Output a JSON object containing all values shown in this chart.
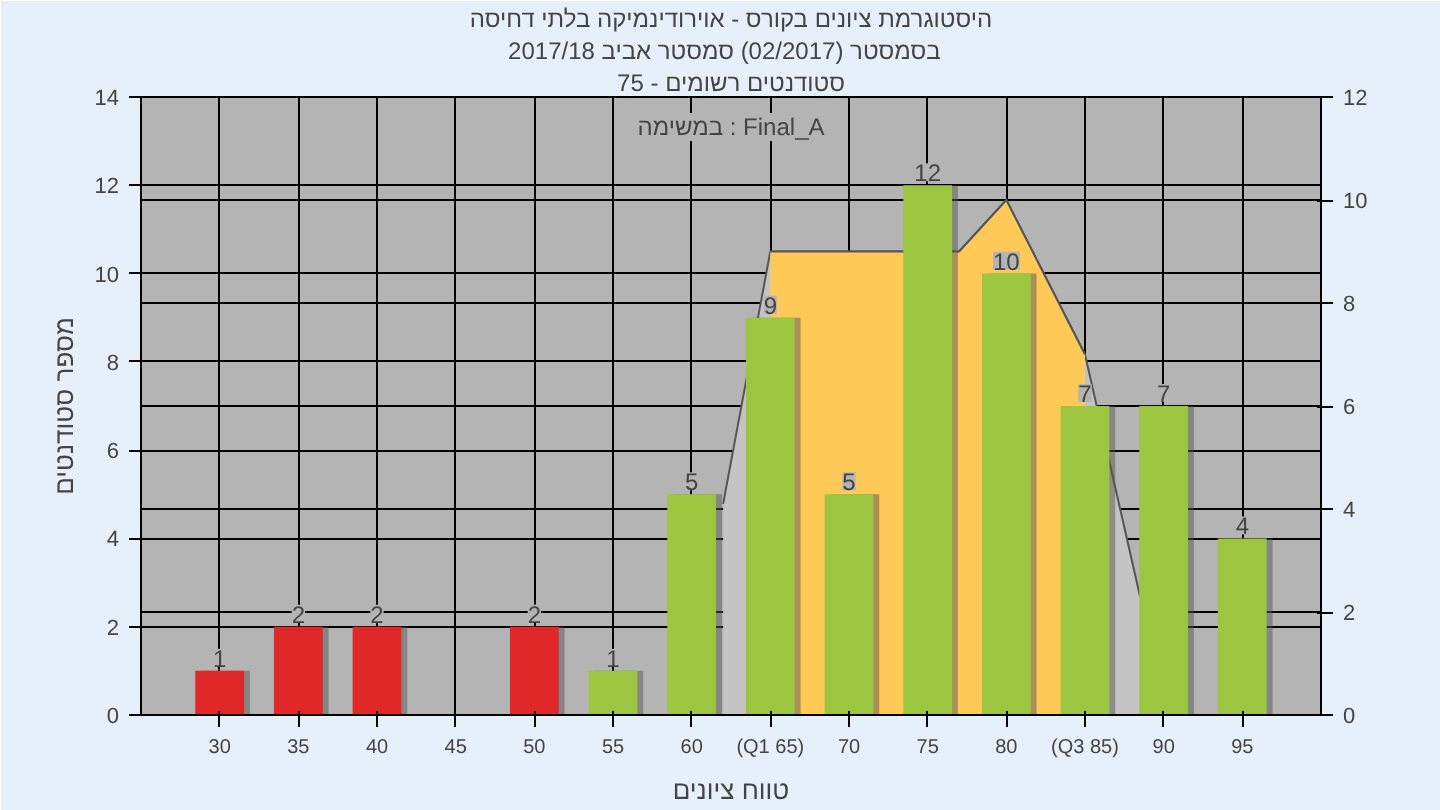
{
  "chart_data": {
    "type": "bar",
    "title": "היסטוגרמת ציונים בקורס - אוירודינמיקה בלתי דחיסה",
    "subtitle": "בסמסטר  (02/2017)  סמסטר אביב 2017/18",
    "xlabel": "טווח ציונים",
    "ylabel": "מספר סטודנטים",
    "annotations": [
      "סטודנטים רשומים - 75",
      "במשימה : Final_A"
    ],
    "x": [
      30,
      35,
      40,
      45,
      50,
      55,
      60,
      65,
      70,
      75,
      80,
      85,
      90,
      95
    ],
    "series": [
      {
        "type": "area",
        "axis": "y2",
        "color": "#c4c4c4",
        "x": [
          62,
          65,
          77,
          80,
          85,
          88.5
        ],
        "values": [
          4.1,
          9,
          9,
          10,
          7,
          2.3
        ]
      },
      {
        "type": "area",
        "axis": "y2",
        "color": "#ffc957",
        "x": [
          65,
          77,
          80,
          85
        ],
        "values": [
          9,
          9,
          10,
          7
        ]
      },
      {
        "values": [
          1,
          2,
          2,
          0,
          2,
          1,
          5,
          9,
          5,
          12,
          10,
          7,
          7,
          4
        ],
        "value_labels": [
          "1",
          "2",
          "2",
          null,
          "2",
          "1",
          "5",
          "9",
          "5",
          "12",
          "10",
          "7",
          "7",
          "4"
        ],
        "colors": [
          "#e02828",
          "#e02828",
          "#e02828",
          "#e02828",
          "#e02828",
          "#9cc540",
          "#9cc540",
          "#9cc540",
          "#9cc540",
          "#9cc540",
          "#9cc540",
          "#9cc540",
          "#9cc540",
          "#9cc540"
        ]
      }
    ],
    "xlim": [
      25,
      100
    ],
    "xticks": [
      30,
      35,
      40,
      45,
      50,
      55,
      60,
      {
        "value": 65,
        "label": "(Q1 65)"
      },
      70,
      75,
      80,
      {
        "value": 85,
        "label": "(Q3 85)"
      },
      90,
      95
    ],
    "ylim": [
      0,
      14
    ],
    "yticks": [
      0,
      2,
      4,
      6,
      8,
      10,
      12,
      14
    ],
    "y2lim": [
      0,
      12
    ],
    "y2ticks": [
      0,
      2,
      4,
      6,
      8,
      10,
      12
    ],
    "grid": true
  }
}
